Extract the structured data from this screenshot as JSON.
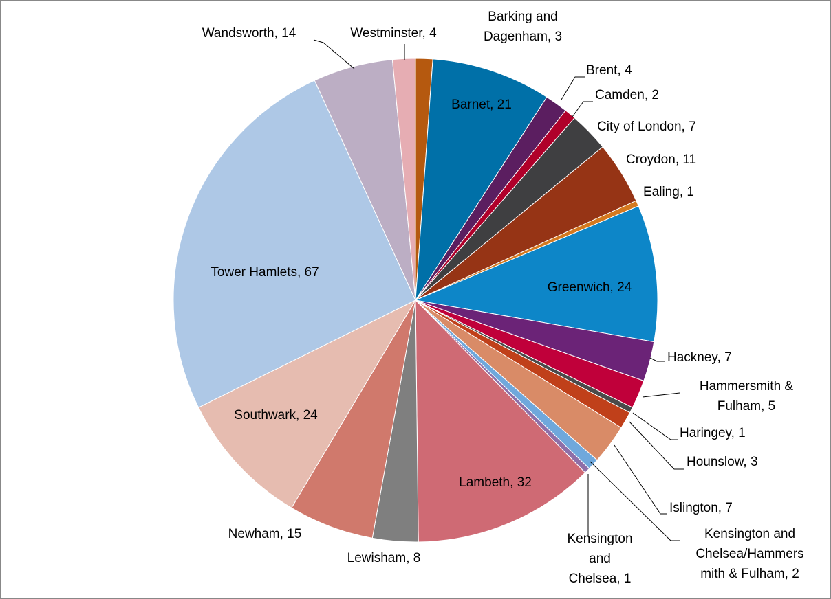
{
  "chart_data": {
    "type": "pie",
    "values": [
      3,
      21,
      4,
      2,
      7,
      11,
      1,
      24,
      7,
      5,
      1,
      3,
      7,
      2,
      1,
      32,
      8,
      15,
      24,
      67,
      14,
      4
    ],
    "value_labels": [
      "Barking and\nDagenham, 3",
      "Barnet, 21",
      "Brent, 4",
      "Camden, 2",
      "City of London, 7",
      "Croydon, 11",
      "Ealing, 1",
      "Greenwich, 24",
      "Hackney, 7",
      "Hammersmith &\nFulham, 5",
      "Haringey, 1",
      "Hounslow, 3",
      "Islington, 7",
      "Kensington and\nChelsea/Hammers\nmith & Fulham, 2",
      "Kensington\nand\nChelsea, 1",
      "Lambeth, 32",
      "Lewisham, 8",
      "Newham, 15",
      "Southwark, 24",
      "Tower Hamlets, 67",
      "Wandsworth, 14",
      "Westminster, 4"
    ],
    "colors": [
      "#b5590f",
      "#0070a8",
      "#5b1e60",
      "#b0002a",
      "#3f3f41",
      "#963415",
      "#d4791f",
      "#0d86c8",
      "#6b2377",
      "#c0003a",
      "#4a4a4a",
      "#c0401a",
      "#d98b67",
      "#6fa8dc",
      "#8e6fa8",
      "#cf6a74",
      "#7f7f7f",
      "#d0796c",
      "#e6bcb0",
      "#aec8e6",
      "#bcaec4",
      "#e6adb3"
    ]
  }
}
